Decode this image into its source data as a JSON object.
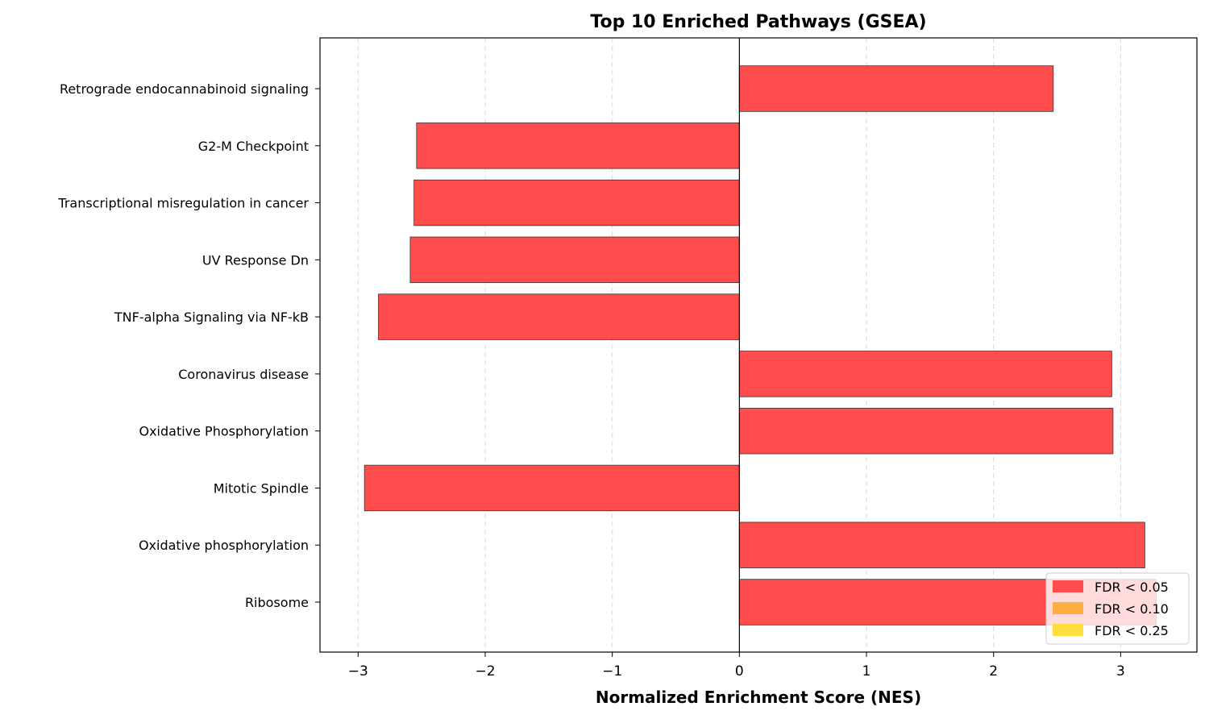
{
  "chart_data": {
    "type": "bar",
    "orientation": "horizontal",
    "title": "Top 10 Enriched Pathways (GSEA)",
    "xlabel": "Normalized Enrichment Score (NES)",
    "ylabel": "",
    "xlim": [
      -3.3,
      3.6
    ],
    "xticks": [
      -3,
      -2,
      -1,
      0,
      1,
      2,
      3
    ],
    "xtick_labels": [
      "−3",
      "−2",
      "−1",
      "0",
      "1",
      "2",
      "3"
    ],
    "grid": "x-dashed",
    "categories": [
      "Retrograde endocannabinoid signaling",
      "G2-M Checkpoint",
      "Transcriptional misregulation in cancer",
      "UV Response Dn",
      "TNF-alpha Signaling via NF-kB",
      "Coronavirus disease",
      "Oxidative Phosphorylation",
      "Mitotic Spindle",
      "Oxidative phosphorylation",
      "Ribosome"
    ],
    "values": [
      2.47,
      -2.54,
      -2.56,
      -2.59,
      -2.84,
      2.93,
      2.94,
      -2.95,
      3.19,
      3.28
    ],
    "bar_color": "#ff4d4d",
    "legend": {
      "placement": "lower-right",
      "entries": [
        {
          "label": "FDR < 0.05",
          "color": "#ff4d4d"
        },
        {
          "label": "FDR < 0.10",
          "color": "#ffae42"
        },
        {
          "label": "FDR < 0.25",
          "color": "#ffdf3f"
        }
      ]
    }
  }
}
